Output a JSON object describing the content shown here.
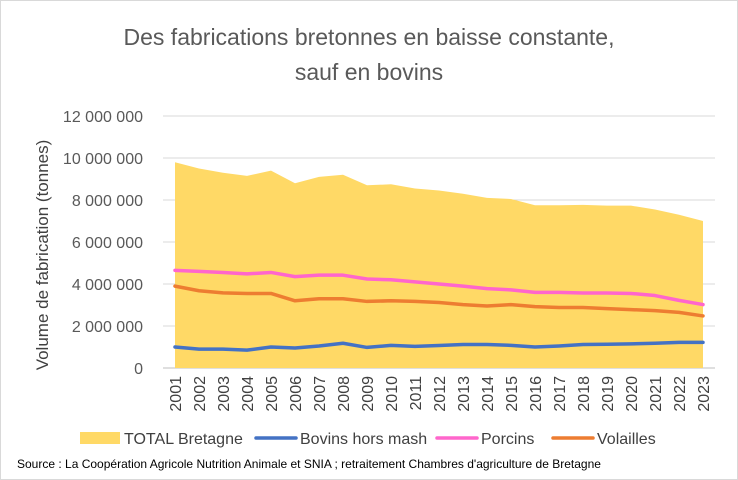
{
  "chart_data": {
    "type": "area",
    "title": [
      "Des fabrications bretonnes en baisse constante,",
      "sauf en bovins"
    ],
    "ylabel": "Volume de fabrication (tonnes)",
    "xlabel": "",
    "ylim": [
      0,
      12000000
    ],
    "yticks": [
      0,
      2000000,
      4000000,
      6000000,
      8000000,
      10000000,
      12000000
    ],
    "ytick_labels": [
      "0",
      "2 000 000",
      "4 000 000",
      "6 000 000",
      "8 000 000",
      "10 000 000",
      "12 000 000"
    ],
    "grid": true,
    "legend_position": "bottom",
    "categories": [
      "2001",
      "2002",
      "2003",
      "2004",
      "2005",
      "2006",
      "2007",
      "2008",
      "2009",
      "2010",
      "2011",
      "2012",
      "2013",
      "2014",
      "2015",
      "2016",
      "2017",
      "2018",
      "2019",
      "2020",
      "2021",
      "2022",
      "2023"
    ],
    "series": [
      {
        "name": "TOTAL Bretagne",
        "kind": "area",
        "color": "#FFD966",
        "values": [
          9800000,
          9500000,
          9300000,
          9150000,
          9400000,
          8800000,
          9100000,
          9200000,
          8700000,
          8750000,
          8550000,
          8450000,
          8300000,
          8100000,
          8050000,
          7750000,
          7750000,
          7770000,
          7730000,
          7730000,
          7550000,
          7300000,
          7000000
        ]
      },
      {
        "name": "Bovins hors mash",
        "kind": "line",
        "color": "#4472C4",
        "values": [
          1000000,
          900000,
          900000,
          850000,
          1000000,
          950000,
          1050000,
          1180000,
          980000,
          1080000,
          1030000,
          1070000,
          1120000,
          1120000,
          1080000,
          1000000,
          1050000,
          1120000,
          1130000,
          1150000,
          1180000,
          1220000,
          1220000
        ]
      },
      {
        "name": "Porcins",
        "kind": "line",
        "color": "#FF66CC",
        "values": [
          4650000,
          4600000,
          4550000,
          4480000,
          4550000,
          4350000,
          4420000,
          4420000,
          4240000,
          4200000,
          4100000,
          4000000,
          3900000,
          3780000,
          3720000,
          3600000,
          3600000,
          3570000,
          3570000,
          3550000,
          3450000,
          3220000,
          3020000
        ]
      },
      {
        "name": "Volailles",
        "kind": "line",
        "color": "#ED7D31",
        "values": [
          3900000,
          3680000,
          3580000,
          3550000,
          3550000,
          3200000,
          3300000,
          3300000,
          3170000,
          3200000,
          3170000,
          3120000,
          3020000,
          2950000,
          3020000,
          2920000,
          2880000,
          2880000,
          2830000,
          2780000,
          2730000,
          2650000,
          2480000
        ]
      }
    ]
  },
  "source": "Source : La Coopération Agricole Nutrition Animale et SNIA ; retraitement Chambres d'agriculture de Bretagne"
}
